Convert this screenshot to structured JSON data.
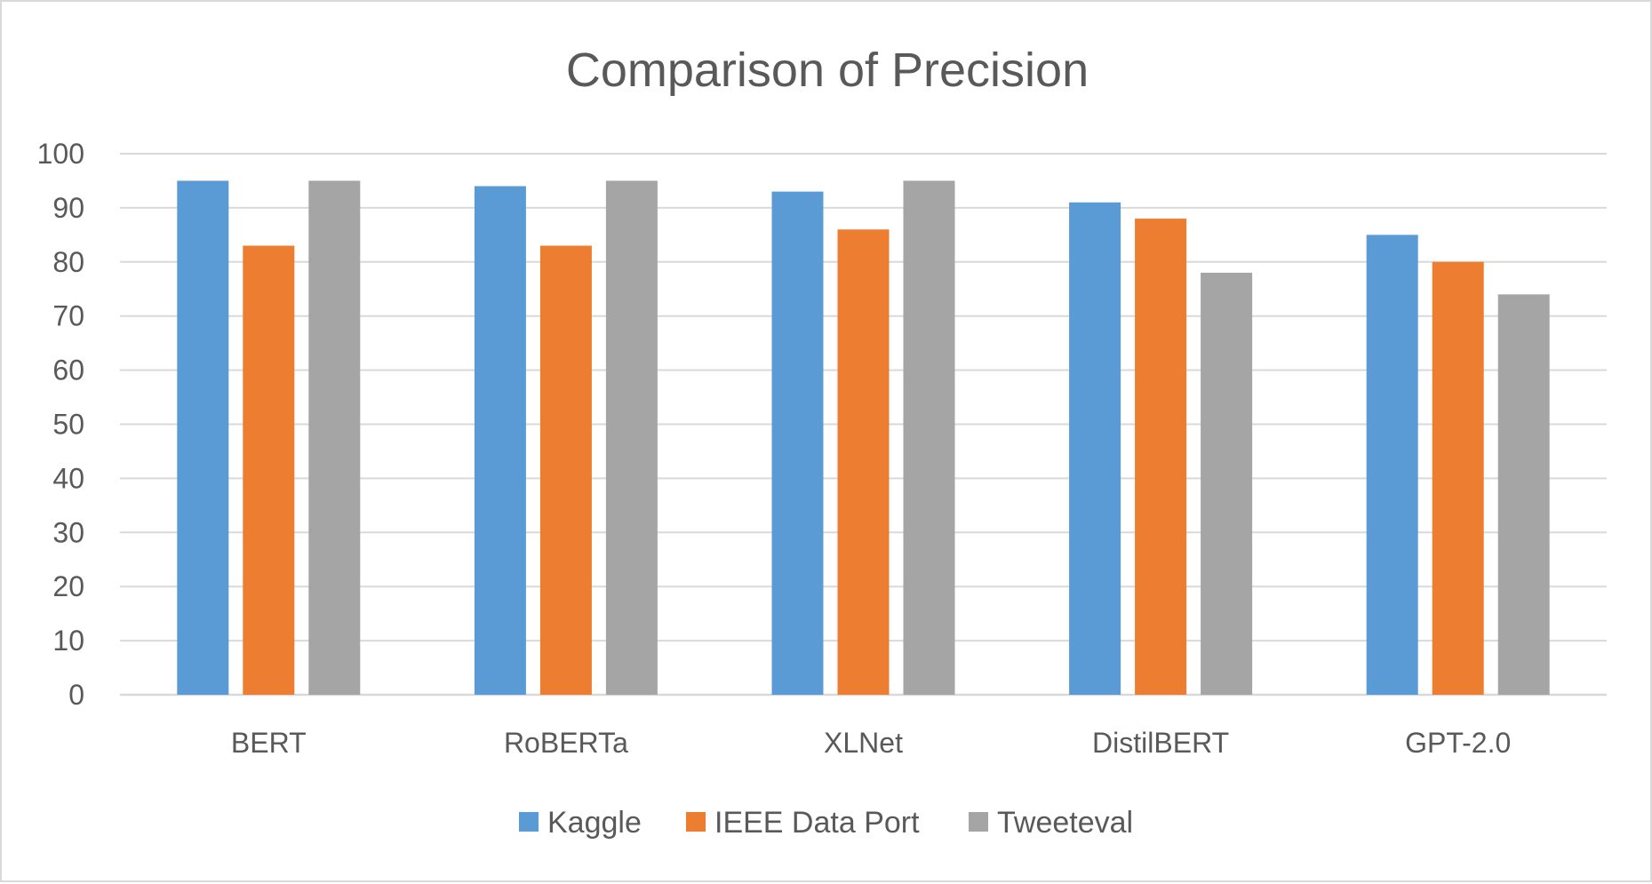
{
  "chart_data": {
    "type": "bar",
    "title": "Comparison of Precision",
    "xlabel": "",
    "ylabel": "",
    "categories": [
      "BERT",
      "RoBERTa",
      "XLNet",
      "DistilBERT",
      "GPT-2.0"
    ],
    "series": [
      {
        "name": "Kaggle",
        "color": "#5B9BD5",
        "values": [
          95,
          94,
          93,
          91,
          85
        ]
      },
      {
        "name": "IEEE Data Port",
        "color": "#ED7D31",
        "values": [
          83,
          83,
          86,
          88,
          80
        ]
      },
      {
        "name": "Tweeteval",
        "color": "#A5A5A5",
        "values": [
          95,
          95,
          95,
          78,
          74
        ]
      }
    ],
    "ylim": [
      0,
      100
    ],
    "yticks": [
      0,
      10,
      20,
      30,
      40,
      50,
      60,
      70,
      80,
      90,
      100
    ],
    "grid": true,
    "legend": "bottom",
    "gridline_color": "#d9d9d9",
    "text_color": "#595959"
  }
}
